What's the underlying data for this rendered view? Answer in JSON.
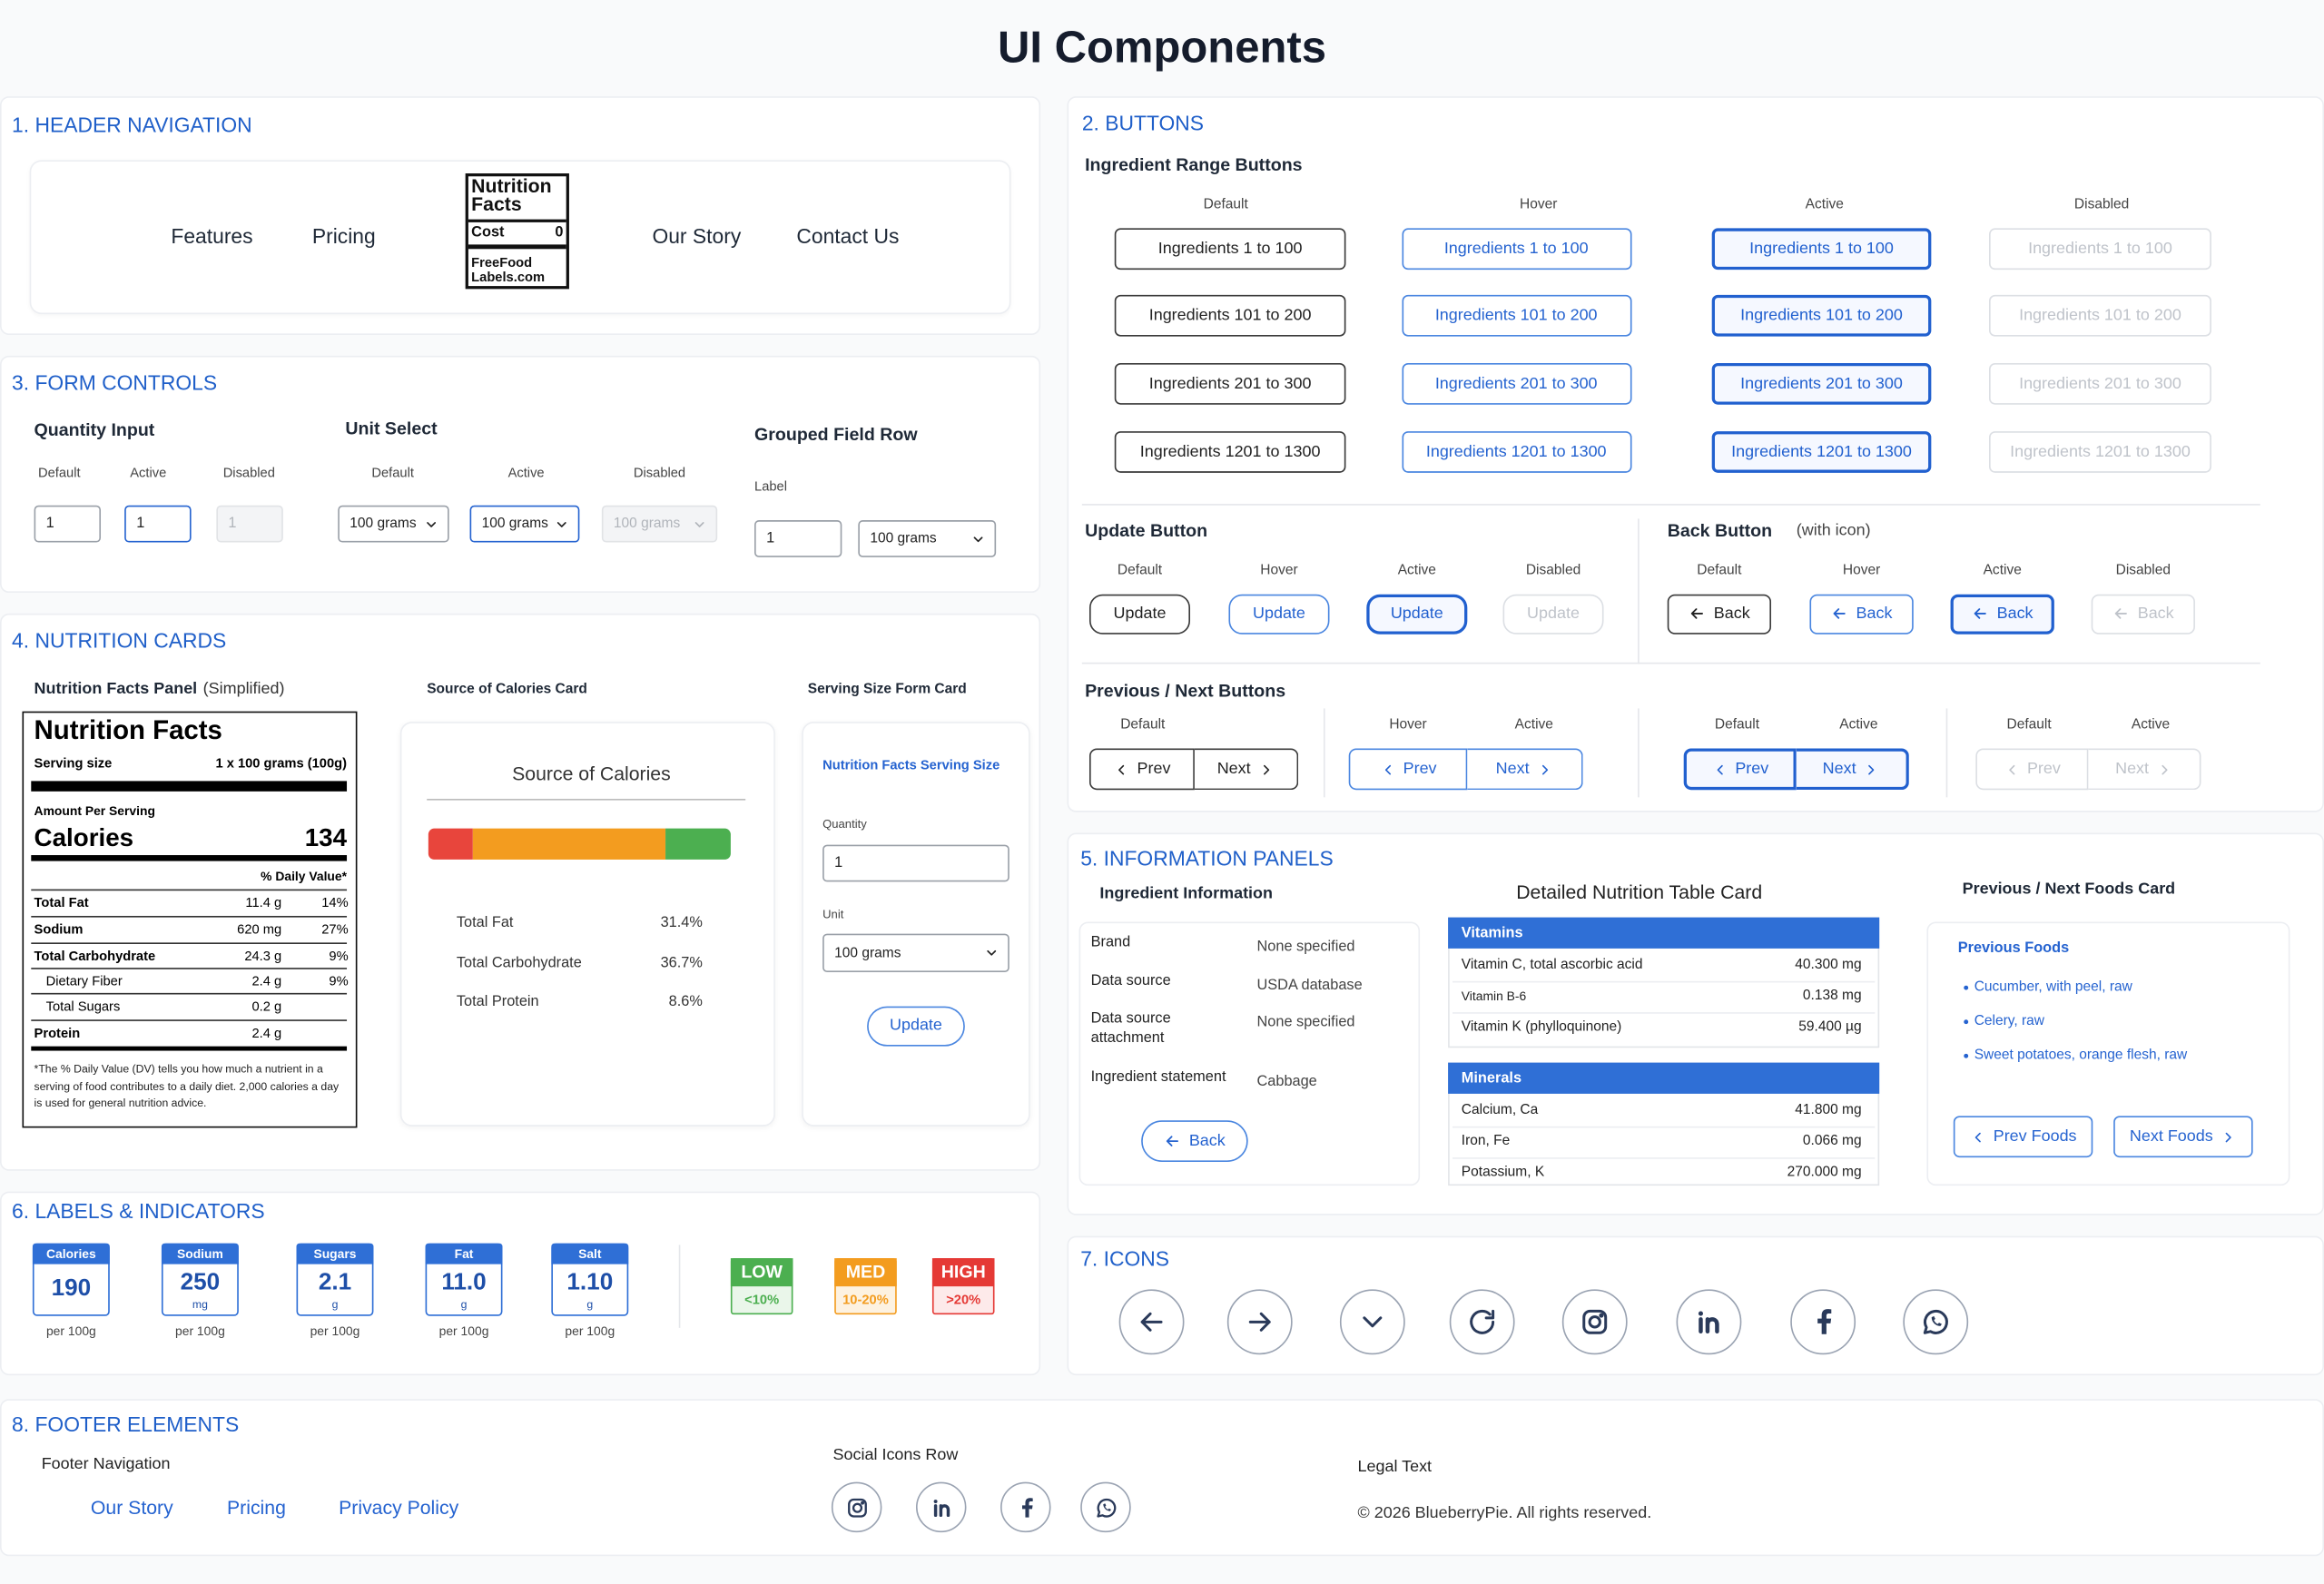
{
  "title": "UI Components",
  "header_navigation": {
    "heading": "1. HEADER NAVIGATION",
    "links": [
      "Features",
      "Pricing",
      "Our Story",
      "Contact Us"
    ],
    "logo": {
      "title": "Nutrition Facts",
      "cost_label": "Cost",
      "cost_value": 0,
      "site": "FreeFood Labels.com"
    }
  },
  "buttons": {
    "heading": "2. BUTTONS",
    "states": [
      "Default",
      "Hover",
      "Active",
      "Disabled"
    ],
    "range": {
      "title": "Ingredient Range Buttons",
      "labels": [
        "Ingredients 1 to 100",
        "Ingredients 101 to 200",
        "Ingredients 201 to 300",
        "Ingredients 1201 to 1300"
      ]
    },
    "update": {
      "title": "Update Button",
      "label": "Update"
    },
    "back": {
      "title": "Back Button",
      "note": "(with icon)",
      "label": "Back"
    },
    "prev_next": {
      "title": "Previous / Next Buttons",
      "prev": "Prev",
      "next": "Next",
      "groups": [
        [
          "Default"
        ],
        [
          "Hover",
          "Active"
        ],
        [
          "Default",
          "Active"
        ],
        [
          "Default",
          "Active"
        ]
      ]
    }
  },
  "form_controls": {
    "heading": "3.  FORM CONTROLS",
    "states": [
      "Default",
      "Active",
      "Disabled"
    ],
    "quantity": {
      "title": "Quantity Input",
      "value": 1
    },
    "unit": {
      "title": "Unit Select",
      "option": "100 grams"
    },
    "grouped": {
      "title": "Grouped Field Row",
      "label": "Label",
      "value": 1,
      "option": "100 grams"
    }
  },
  "nutrition_cards": {
    "heading": "4. NUTRITION CARDS",
    "panel": {
      "title": "Nutrition Facts Panel",
      "note": "(Simplified)",
      "label_title": "Nutrition Facts",
      "serving_label": "Serving size",
      "serving": "1 x 100 grams (100g)",
      "amount": "Amount Per Serving",
      "calories_label": "Calories",
      "calories_value": 134,
      "dv_header": "% Daily Value*",
      "rows": [
        {
          "name": "Total Fat",
          "amount": "11.4 g",
          "dv": "14%"
        },
        {
          "name": "Sodium",
          "amount": "620 mg",
          "dv": "27%"
        },
        {
          "name": "Total Carbohydrate",
          "amount": "24.3 g",
          "dv": "9%"
        },
        {
          "name": "Dietary Fiber",
          "amount": "2.4 g",
          "dv": "9%"
        },
        {
          "name": "Total Sugars",
          "amount": "0.2 g"
        },
        {
          "name": "Protein",
          "amount": "2.4 g"
        }
      ],
      "footnote": "*The % Daily Value (DV) tells you how much a nutrient in a serving of food contributes to a daily diet. 2,000 calories a day is used for general nutrition advice."
    },
    "calories_card": {
      "title": "Source of Calories Card",
      "card_title": "Source of Calories",
      "rows": [
        [
          "Total Fat",
          "31.4%"
        ],
        [
          "Total Carbohydrate",
          "36.7%"
        ],
        [
          "Total Protein",
          "8.6%"
        ]
      ]
    },
    "serving_card": {
      "title": "Serving Size Form Card",
      "card_title": "Nutrition Facts Serving Size",
      "quantity_label": "Quantity",
      "quantity": 1,
      "unit_label": "Unit",
      "unit": "100 grams",
      "button": "Update"
    }
  },
  "information_panels": {
    "heading": "5. INFORMATION PANELS",
    "ingredient": {
      "title": "Ingredient Information",
      "rows": [
        [
          "Brand",
          "None specified"
        ],
        [
          "Data source",
          "USDA database"
        ],
        [
          "Data source attachment",
          "None specified"
        ],
        [
          "Ingredient statement",
          "Cabbage"
        ]
      ],
      "button": "Back"
    },
    "detailed": {
      "title": "Detailed Nutrition Table Card",
      "sections": [
        {
          "name": "Vitamins",
          "rows": [
            [
              "Vitamin C, total ascorbic acid",
              "40.300 mg"
            ],
            [
              "Vitamin B-6",
              "0.138 mg"
            ],
            [
              "Vitamin K (phylloquinone)",
              "59.400 µg"
            ]
          ]
        },
        {
          "name": "Minerals",
          "rows": [
            [
              "Calcium, Ca",
              "41.800 mg"
            ],
            [
              "Iron, Fe",
              "0.066 mg"
            ],
            [
              "Potassium, K",
              "270.000 mg"
            ]
          ]
        }
      ]
    },
    "foods": {
      "title": "Previous / Next Foods Card",
      "subtitle": "Previous Foods",
      "items": [
        "Cucumber, with peel, raw",
        "Celery, raw",
        "Sweet potatoes, orange flesh, raw"
      ],
      "prev": "Prev Foods",
      "next": "Next Foods"
    }
  },
  "labels_indicators": {
    "heading": "6. LABELS & INDICATORS",
    "per": "per 100g",
    "nutrients": [
      {
        "name": "Calories",
        "value": "190"
      },
      {
        "name": "Sodium",
        "value": "250",
        "unit": "mg"
      },
      {
        "name": "Sugars",
        "value": "2.1",
        "unit": "g"
      },
      {
        "name": "Fat",
        "value": "11.0",
        "unit": "g"
      },
      {
        "name": "Salt",
        "value": "1.10",
        "unit": "g"
      }
    ],
    "levels": [
      {
        "name": "LOW",
        "range": "<10%"
      },
      {
        "name": "MED",
        "range": "10-20%"
      },
      {
        "name": "HIGH",
        "range": ">20%"
      }
    ]
  },
  "icons": {
    "heading": "7. ICONS"
  },
  "footer": {
    "heading": "8. FOOTER ELEMENTS",
    "nav_title": "Footer Navigation",
    "nav": [
      "Our Story",
      "Pricing",
      "Privacy Policy"
    ],
    "social_title": "Social Icons Row",
    "legal_title": "Legal Text",
    "legal": "© 2026 BlueberryPie. All rights reserved."
  }
}
